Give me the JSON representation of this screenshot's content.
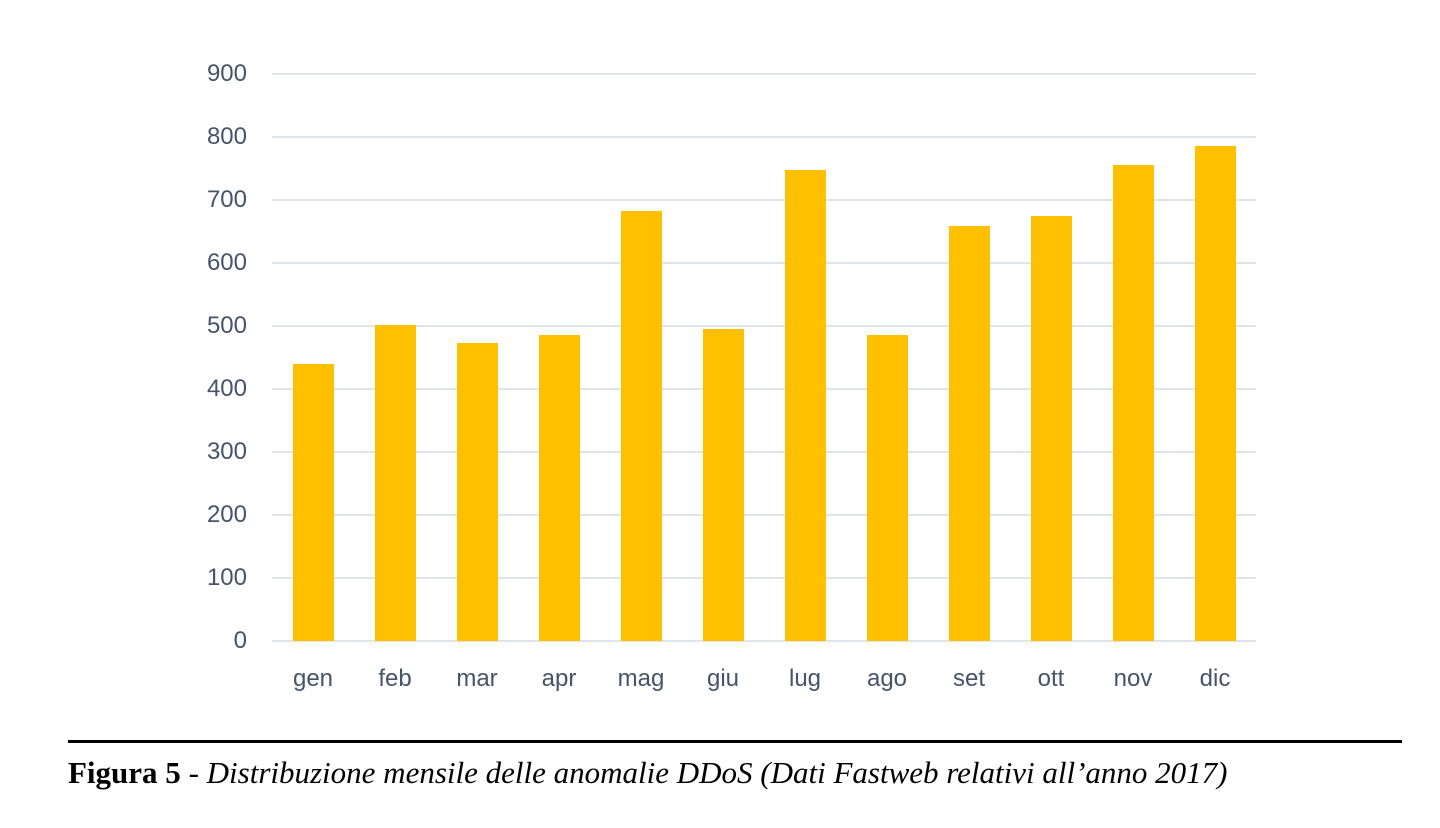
{
  "figure": {
    "caption": {
      "label": "Figura 5",
      "separator": " - ",
      "text": "Distribuzione mensile delle anomalie DDoS (Dati Fastweb relativi all’anno 2017)"
    }
  },
  "chart_data": {
    "type": "bar",
    "categories": [
      "gen",
      "feb",
      "mar",
      "apr",
      "mag",
      "giu",
      "lug",
      "ago",
      "set",
      "ott",
      "nov",
      "dic"
    ],
    "values": [
      440,
      501,
      473,
      486,
      682,
      496,
      747,
      486,
      658,
      675,
      756,
      786
    ],
    "title": "",
    "xlabel": "",
    "ylabel": "",
    "ylim": [
      0,
      900
    ],
    "yticks": [
      0,
      100,
      200,
      300,
      400,
      500,
      600,
      700,
      800,
      900
    ],
    "grid": true,
    "legend": false,
    "colors": {
      "bar": "#FFC000",
      "gridline": "#E0E4EB",
      "axis_text": "#44546A",
      "caption_text": "#000000",
      "rule": "#000000",
      "background": "#FFFFFF"
    }
  }
}
